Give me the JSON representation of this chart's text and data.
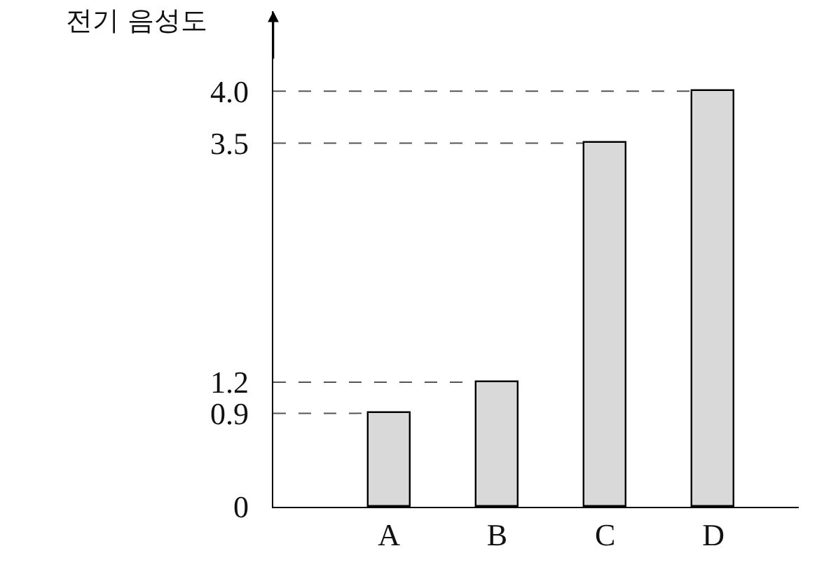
{
  "chart_data": {
    "type": "bar",
    "ylabel": "전기 음성도",
    "categories": [
      "A",
      "B",
      "C",
      "D"
    ],
    "values": [
      0.9,
      1.2,
      3.5,
      4.0
    ],
    "color": "#d9d9d9",
    "ylim": [
      0,
      4.77
    ],
    "yticks": [
      0,
      0.9,
      1.2,
      3.5,
      {
        "value": 4,
        "label": "4.0"
      }
    ],
    "ref_lines": [
      {
        "axis": "y",
        "value": 0.9,
        "line_style": "dashed",
        "color": "#555555"
      },
      {
        "axis": "y",
        "value": 1.2,
        "line_style": "dashed",
        "color": "#555555"
      },
      {
        "axis": "y",
        "value": 3.5,
        "line_style": "dashed",
        "color": "#555555"
      },
      {
        "axis": "y",
        "value": 4.0,
        "line_style": "dashed",
        "color": "#555555"
      }
    ]
  }
}
